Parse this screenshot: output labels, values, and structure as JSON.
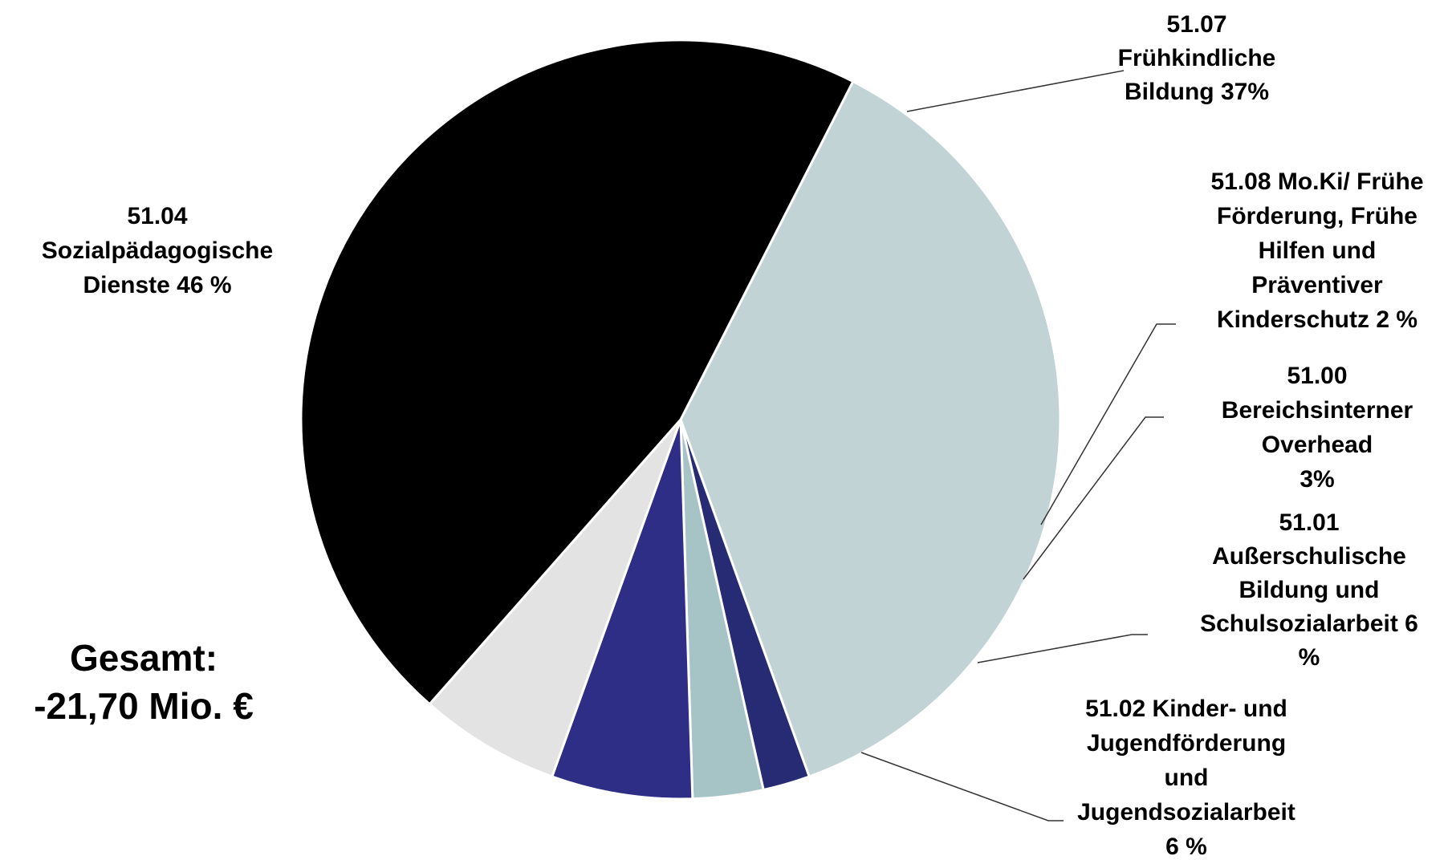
{
  "chart_data": {
    "type": "pie",
    "total_label": [
      "Gesamt:",
      "-21,70 Mio. €"
    ],
    "slices": [
      {
        "code": "51.07",
        "value": 37,
        "color": "#c1d3d5",
        "label_lines": [
          "51.07",
          "Frühkindliche",
          "Bildung  37%"
        ]
      },
      {
        "code": "51.08",
        "value": 2,
        "color": "#262b73",
        "label_lines": [
          "51.08 Mo.Ki/ Frühe",
          "Förderung, Frühe",
          "Hilfen und",
          "Präventiver",
          "Kinderschutz 2 %"
        ]
      },
      {
        "code": "51.00",
        "value": 3,
        "color": "#a6c4c6",
        "label_lines": [
          "51.00",
          "Bereichsinterner",
          "Overhead",
          "3%"
        ]
      },
      {
        "code": "51.01",
        "value": 6,
        "color": "#2e2e87",
        "label_lines": [
          "51.01",
          "Außerschulische",
          "Bildung und",
          "Schulsozialarbeit  6",
          "%"
        ]
      },
      {
        "code": "51.02",
        "value": 6,
        "color": "#e3e3e3",
        "label_lines": [
          "51.02 Kinder- und",
          "Jugendförderung",
          "und",
          "Jugendsozialarbeit",
          "6 %"
        ]
      },
      {
        "code": "51.04",
        "value": 46,
        "color": "#000000",
        "label_lines": [
          "51.04",
          "Sozialpädagogische",
          "Dienste  46 %"
        ]
      }
    ]
  }
}
